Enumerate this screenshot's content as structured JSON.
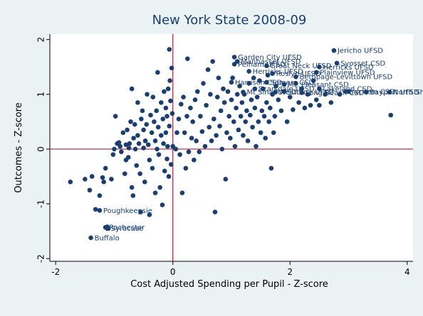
{
  "chart_data": {
    "type": "scatter",
    "title": "New York State 2008-09",
    "xlabel": "Cost Adjusted Spending per Pupil - Z-score",
    "ylabel": "Outcomes - Z-score",
    "xlim": [
      -2.1,
      4.1
    ],
    "ylim": [
      -2.05,
      2.1
    ],
    "x_ticks": [
      -2,
      0,
      2,
      4
    ],
    "y_ticks": [
      -2,
      -1,
      0,
      1,
      2
    ],
    "reference_lines": {
      "x": 0,
      "y": 0
    },
    "colors": {
      "marker": "#1a3e6f",
      "reference": "#a3213d",
      "plot_bg": "#ffffff",
      "outer_bg": "#eaf2f3"
    },
    "labeled_points": [
      {
        "x": 2.75,
        "y": 1.8,
        "label": "Jericho UFSD"
      },
      {
        "x": 1.05,
        "y": 1.68,
        "label": "Garden City UFSD"
      },
      {
        "x": 1.1,
        "y": 1.6,
        "label": "Manhasset UFSD"
      },
      {
        "x": 1.05,
        "y": 1.55,
        "label": "Pelham UFSD"
      },
      {
        "x": 2.8,
        "y": 1.57,
        "label": "Syosset CSD"
      },
      {
        "x": 1.6,
        "y": 1.52,
        "label": "Great Neck UFSD"
      },
      {
        "x": 2.5,
        "y": 1.5,
        "label": "Herricks UFSD"
      },
      {
        "x": 1.3,
        "y": 1.42,
        "label": "Herricks UFSD"
      },
      {
        "x": 1.7,
        "y": 1.38,
        "label": "Roslyn UFSD"
      },
      {
        "x": 2.45,
        "y": 1.4,
        "label": "Plainview UFSD"
      },
      {
        "x": 2.1,
        "y": 1.32,
        "label": "Bethpage-Levittown UFSD"
      },
      {
        "x": 1.0,
        "y": 1.22,
        "label": "Harrison CSD"
      },
      {
        "x": 1.6,
        "y": 1.22,
        "label": "Somers CSD"
      },
      {
        "x": 1.9,
        "y": 1.18,
        "label": "Mt. Pleasant CSD"
      },
      {
        "x": 1.4,
        "y": 1.1,
        "label": "Scarsdale UFSD"
      },
      {
        "x": 2.5,
        "y": 1.1,
        "label": "Lakeland CSD"
      },
      {
        "x": 1.2,
        "y": 1.04,
        "label": "Mt Sinai UFSD"
      },
      {
        "x": 1.75,
        "y": 1.04,
        "label": "Westbury UFSD"
      },
      {
        "x": 2.2,
        "y": 1.03,
        "label": "Long Beach CSD"
      },
      {
        "x": 2.95,
        "y": 1.05,
        "label": "Sachem CSD"
      },
      {
        "x": 3.3,
        "y": 1.04,
        "label": "Bayport UFSD"
      },
      {
        "x": 3.7,
        "y": 1.04,
        "label": "North Shore CSD"
      },
      {
        "x": -1.25,
        "y": -1.12,
        "label": "Poughkeepsie"
      },
      {
        "x": -1.15,
        "y": -1.43,
        "label": "Rochester"
      },
      {
        "x": -1.12,
        "y": -1.45,
        "label": "Syracuse"
      },
      {
        "x": -1.4,
        "y": -1.62,
        "label": "Buffalo"
      }
    ],
    "points": [
      [
        -1.75,
        -0.6
      ],
      [
        -1.5,
        -0.55
      ],
      [
        -1.42,
        -0.75
      ],
      [
        -1.38,
        -0.5
      ],
      [
        -1.32,
        -1.1
      ],
      [
        -1.25,
        -0.85
      ],
      [
        -1.2,
        -0.52
      ],
      [
        -1.18,
        -0.6
      ],
      [
        -1.15,
        -0.35
      ],
      [
        -1.12,
        -1.42
      ],
      [
        -1.1,
        -1.45
      ],
      [
        -1.05,
        -0.55
      ],
      [
        -1.02,
        -0.1
      ],
      [
        -1.0,
        0.0
      ],
      [
        -0.98,
        0.6
      ],
      [
        -0.95,
        0.1
      ],
      [
        -0.92,
        0.12
      ],
      [
        -0.9,
        0.05
      ],
      [
        -0.88,
        -0.05
      ],
      [
        -0.85,
        0.3
      ],
      [
        -0.82,
        -0.45
      ],
      [
        -0.8,
        -0.2
      ],
      [
        -0.8,
        0.08
      ],
      [
        -0.78,
        0.35
      ],
      [
        -0.76,
        -0.15
      ],
      [
        -0.75,
        0.02
      ],
      [
        -0.74,
        0.1
      ],
      [
        -0.72,
        0.5
      ],
      [
        -0.7,
        -0.7
      ],
      [
        -0.7,
        1.1
      ],
      [
        -0.68,
        -0.85
      ],
      [
        -0.67,
        0.2
      ],
      [
        -0.65,
        0.45
      ],
      [
        -0.64,
        0.0
      ],
      [
        -0.62,
        -0.3
      ],
      [
        -0.6,
        0.25
      ],
      [
        -0.6,
        0.85
      ],
      [
        -0.58,
        0.1
      ],
      [
        -0.56,
        -0.45
      ],
      [
        -0.55,
        -1.15
      ],
      [
        -0.54,
        0.55
      ],
      [
        -0.52,
        0.7
      ],
      [
        -0.5,
        0.02
      ],
      [
        -0.5,
        0.35
      ],
      [
        -0.48,
        -0.6
      ],
      [
        -0.47,
        0.15
      ],
      [
        -0.45,
        0.45
      ],
      [
        -0.44,
        1.0
      ],
      [
        -0.42,
        0.08
      ],
      [
        -0.4,
        -0.2
      ],
      [
        -0.4,
        -1.2
      ],
      [
        -0.38,
        0.62
      ],
      [
        -0.36,
        0.3
      ],
      [
        -0.35,
        -0.35
      ],
      [
        -0.34,
        0.95
      ],
      [
        -0.32,
        0.5
      ],
      [
        -0.3,
        0.15
      ],
      [
        -0.3,
        -0.8
      ],
      [
        -0.28,
        0.7
      ],
      [
        -0.27,
        0.0
      ],
      [
        -0.26,
        1.4
      ],
      [
        -0.25,
        0.4
      ],
      [
        -0.24,
        -0.1
      ],
      [
        -0.22,
        -0.7
      ],
      [
        -0.2,
        0.25
      ],
      [
        -0.2,
        0.85
      ],
      [
        -0.18,
        -1.02
      ],
      [
        -0.17,
        0.55
      ],
      [
        -0.16,
        0.1
      ],
      [
        -0.15,
        1.05
      ],
      [
        -0.14,
        -0.4
      ],
      [
        -0.12,
        0.3
      ],
      [
        -0.12,
        0.75
      ],
      [
        -0.1,
        -0.18
      ],
      [
        -0.1,
        0.6
      ],
      [
        -0.09,
        0.05
      ],
      [
        -0.08,
        1.1
      ],
      [
        -0.07,
        -0.5
      ],
      [
        -0.06,
        0.42
      ],
      [
        -0.05,
        1.25
      ],
      [
        -0.04,
        0.88
      ],
      [
        -0.03,
        -0.28
      ],
      [
        -0.02,
        1.48
      ],
      [
        -0.01,
        0.65
      ],
      [
        0.0,
        0.05
      ],
      [
        -0.06,
        1.82
      ],
      [
        0.05,
        0.0
      ],
      [
        0.07,
        0.3
      ],
      [
        0.1,
        0.55
      ],
      [
        0.12,
        -0.1
      ],
      [
        0.14,
        0.82
      ],
      [
        0.16,
        -0.8
      ],
      [
        0.18,
        0.95
      ],
      [
        0.2,
        0.3
      ],
      [
        0.22,
        -0.35
      ],
      [
        0.24,
        0.6
      ],
      [
        0.25,
        1.65
      ],
      [
        0.27,
        -0.05
      ],
      [
        0.3,
        0.75
      ],
      [
        0.32,
        0.2
      ],
      [
        0.34,
        0.5
      ],
      [
        0.36,
        -0.2
      ],
      [
        0.38,
        0.9
      ],
      [
        0.4,
        0.15
      ],
      [
        0.42,
        1.05
      ],
      [
        0.45,
        -0.05
      ],
      [
        0.47,
        0.6
      ],
      [
        0.5,
        0.32
      ],
      [
        0.52,
        1.2
      ],
      [
        0.55,
        0.05
      ],
      [
        0.57,
        0.8
      ],
      [
        0.6,
        1.45
      ],
      [
        0.62,
        0.4
      ],
      [
        0.64,
        1.0
      ],
      [
        0.66,
        0.15
      ],
      [
        0.68,
        1.6
      ],
      [
        0.7,
        0.55
      ],
      [
        0.72,
        -1.15
      ],
      [
        0.74,
        0.25
      ],
      [
        0.76,
        0.95
      ],
      [
        0.78,
        1.3
      ],
      [
        0.8,
        0.42
      ],
      [
        0.82,
        0.7
      ],
      [
        0.84,
        0.0
      ],
      [
        0.86,
        1.1
      ],
      [
        0.88,
        0.85
      ],
      [
        0.9,
        -0.55
      ],
      [
        0.92,
        0.3
      ],
      [
        0.94,
        1.05
      ],
      [
        0.96,
        0.6
      ],
      [
        0.98,
        0.2
      ],
      [
        1.0,
        0.9
      ],
      [
        1.02,
        1.3
      ],
      [
        1.04,
        0.5
      ],
      [
        1.06,
        0.05
      ],
      [
        1.08,
        0.75
      ],
      [
        1.1,
        1.0
      ],
      [
        1.12,
        0.35
      ],
      [
        1.14,
        1.15
      ],
      [
        1.16,
        0.6
      ],
      [
        1.18,
        0.85
      ],
      [
        1.2,
        0.25
      ],
      [
        1.22,
        1.0
      ],
      [
        1.24,
        0.5
      ],
      [
        1.26,
        0.7
      ],
      [
        1.28,
        0.15
      ],
      [
        1.3,
        1.2
      ],
      [
        1.32,
        0.62
      ],
      [
        1.34,
        0.9
      ],
      [
        1.36,
        0.4
      ],
      [
        1.38,
        1.3
      ],
      [
        1.4,
        0.75
      ],
      [
        1.42,
        0.05
      ],
      [
        1.44,
        0.95
      ],
      [
        1.46,
        0.5
      ],
      [
        1.48,
        1.25
      ],
      [
        1.5,
        0.3
      ],
      [
        1.52,
        0.7
      ],
      [
        1.54,
        1.1
      ],
      [
        1.56,
        0.6
      ],
      [
        1.58,
        0.2
      ],
      [
        1.6,
        0.85
      ],
      [
        1.62,
        1.35
      ],
      [
        1.64,
        0.5
      ],
      [
        1.66,
        0.75
      ],
      [
        1.68,
        -0.35
      ],
      [
        1.7,
        1.0
      ],
      [
        1.72,
        0.3
      ],
      [
        1.74,
        0.6
      ],
      [
        1.76,
        1.15
      ],
      [
        1.8,
        0.9
      ],
      [
        1.85,
        0.7
      ],
      [
        1.9,
        1.05
      ],
      [
        1.95,
        0.5
      ],
      [
        2.0,
        0.95
      ],
      [
        2.05,
        0.72
      ],
      [
        2.1,
        1.2
      ],
      [
        2.15,
        0.85
      ],
      [
        2.2,
        1.1
      ],
      [
        2.25,
        0.75
      ],
      [
        2.3,
        1.0
      ],
      [
        2.35,
        0.8
      ],
      [
        2.4,
        1.25
      ],
      [
        2.45,
        0.9
      ],
      [
        2.5,
        0.8
      ],
      [
        2.6,
        1.0
      ],
      [
        2.7,
        0.85
      ],
      [
        2.85,
        1.0
      ],
      [
        3.0,
        1.05
      ],
      [
        3.72,
        0.62
      ]
    ]
  }
}
